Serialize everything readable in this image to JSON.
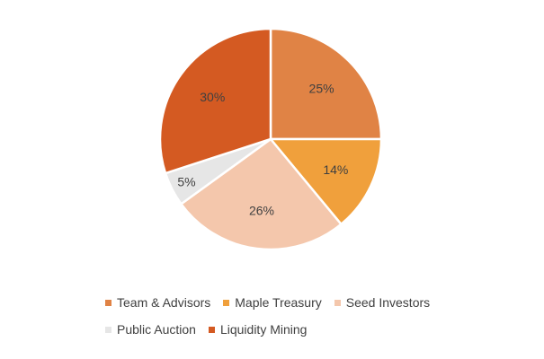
{
  "chart_data": {
    "type": "pie",
    "title": "",
    "slices": [
      {
        "name": "Team & Advisors",
        "value": 25,
        "label": "25%",
        "color": "#E08345"
      },
      {
        "name": "Maple Treasury",
        "value": 14,
        "label": "14%",
        "color": "#F0A03C"
      },
      {
        "name": "Seed Investors",
        "value": 26,
        "label": "26%",
        "color": "#F4C7AC"
      },
      {
        "name": "Public Auction",
        "value": 5,
        "label": "5%",
        "color": "#E6E6E6"
      },
      {
        "name": "Liquidity Mining",
        "value": 30,
        "label": "30%",
        "color": "#D45A22"
      }
    ],
    "start_angle_deg": 0,
    "direction": "clockwise",
    "legend_position": "bottom"
  },
  "legend": {
    "row1": [
      "Team & Advisors",
      "Maple Treasury",
      "Seed Investors"
    ],
    "row2": [
      "Public Auction",
      "Liquidity Mining"
    ]
  }
}
